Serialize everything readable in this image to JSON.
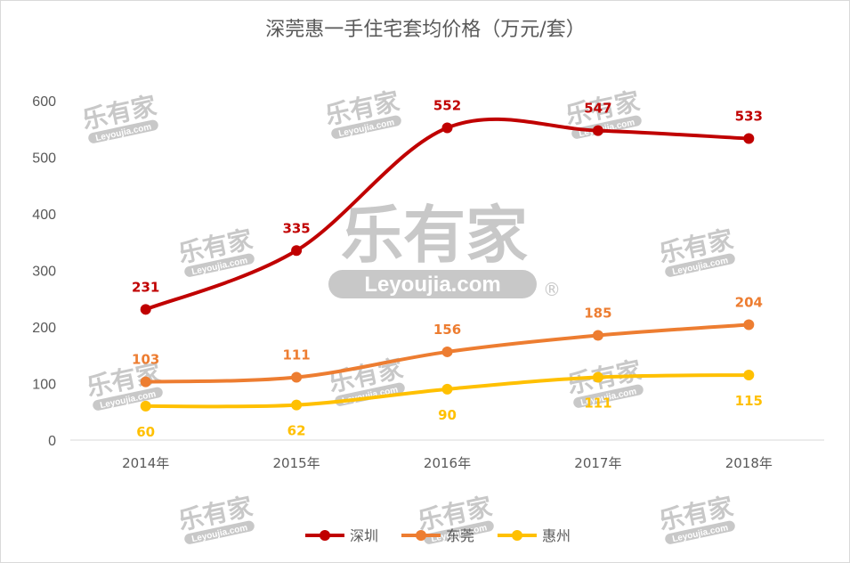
{
  "chart_data": {
    "type": "line",
    "title": "深莞惠一手住宅套均价格（万元/套）",
    "categories": [
      "2014年",
      "2015年",
      "2016年",
      "2017年",
      "2018年"
    ],
    "ylim": [
      0,
      600
    ],
    "yticks": [
      "0",
      "100",
      "200",
      "300",
      "400",
      "500",
      "600"
    ],
    "grid": false,
    "legend_position": "bottom",
    "series": [
      {
        "name": "深圳",
        "color": "#C00000",
        "values": [
          231,
          335,
          552,
          547,
          533
        ],
        "label_side": "above"
      },
      {
        "name": "东莞",
        "color": "#ED7D31",
        "values": [
          103,
          111,
          156,
          185,
          204
        ],
        "label_side": "above"
      },
      {
        "name": "惠州",
        "color": "#FFC000",
        "values": [
          60,
          62,
          90,
          111,
          115
        ],
        "label_side": "below"
      }
    ]
  },
  "watermark": {
    "brand": "乐有家",
    "site": "Leyoujia.com",
    "mark": "®"
  }
}
